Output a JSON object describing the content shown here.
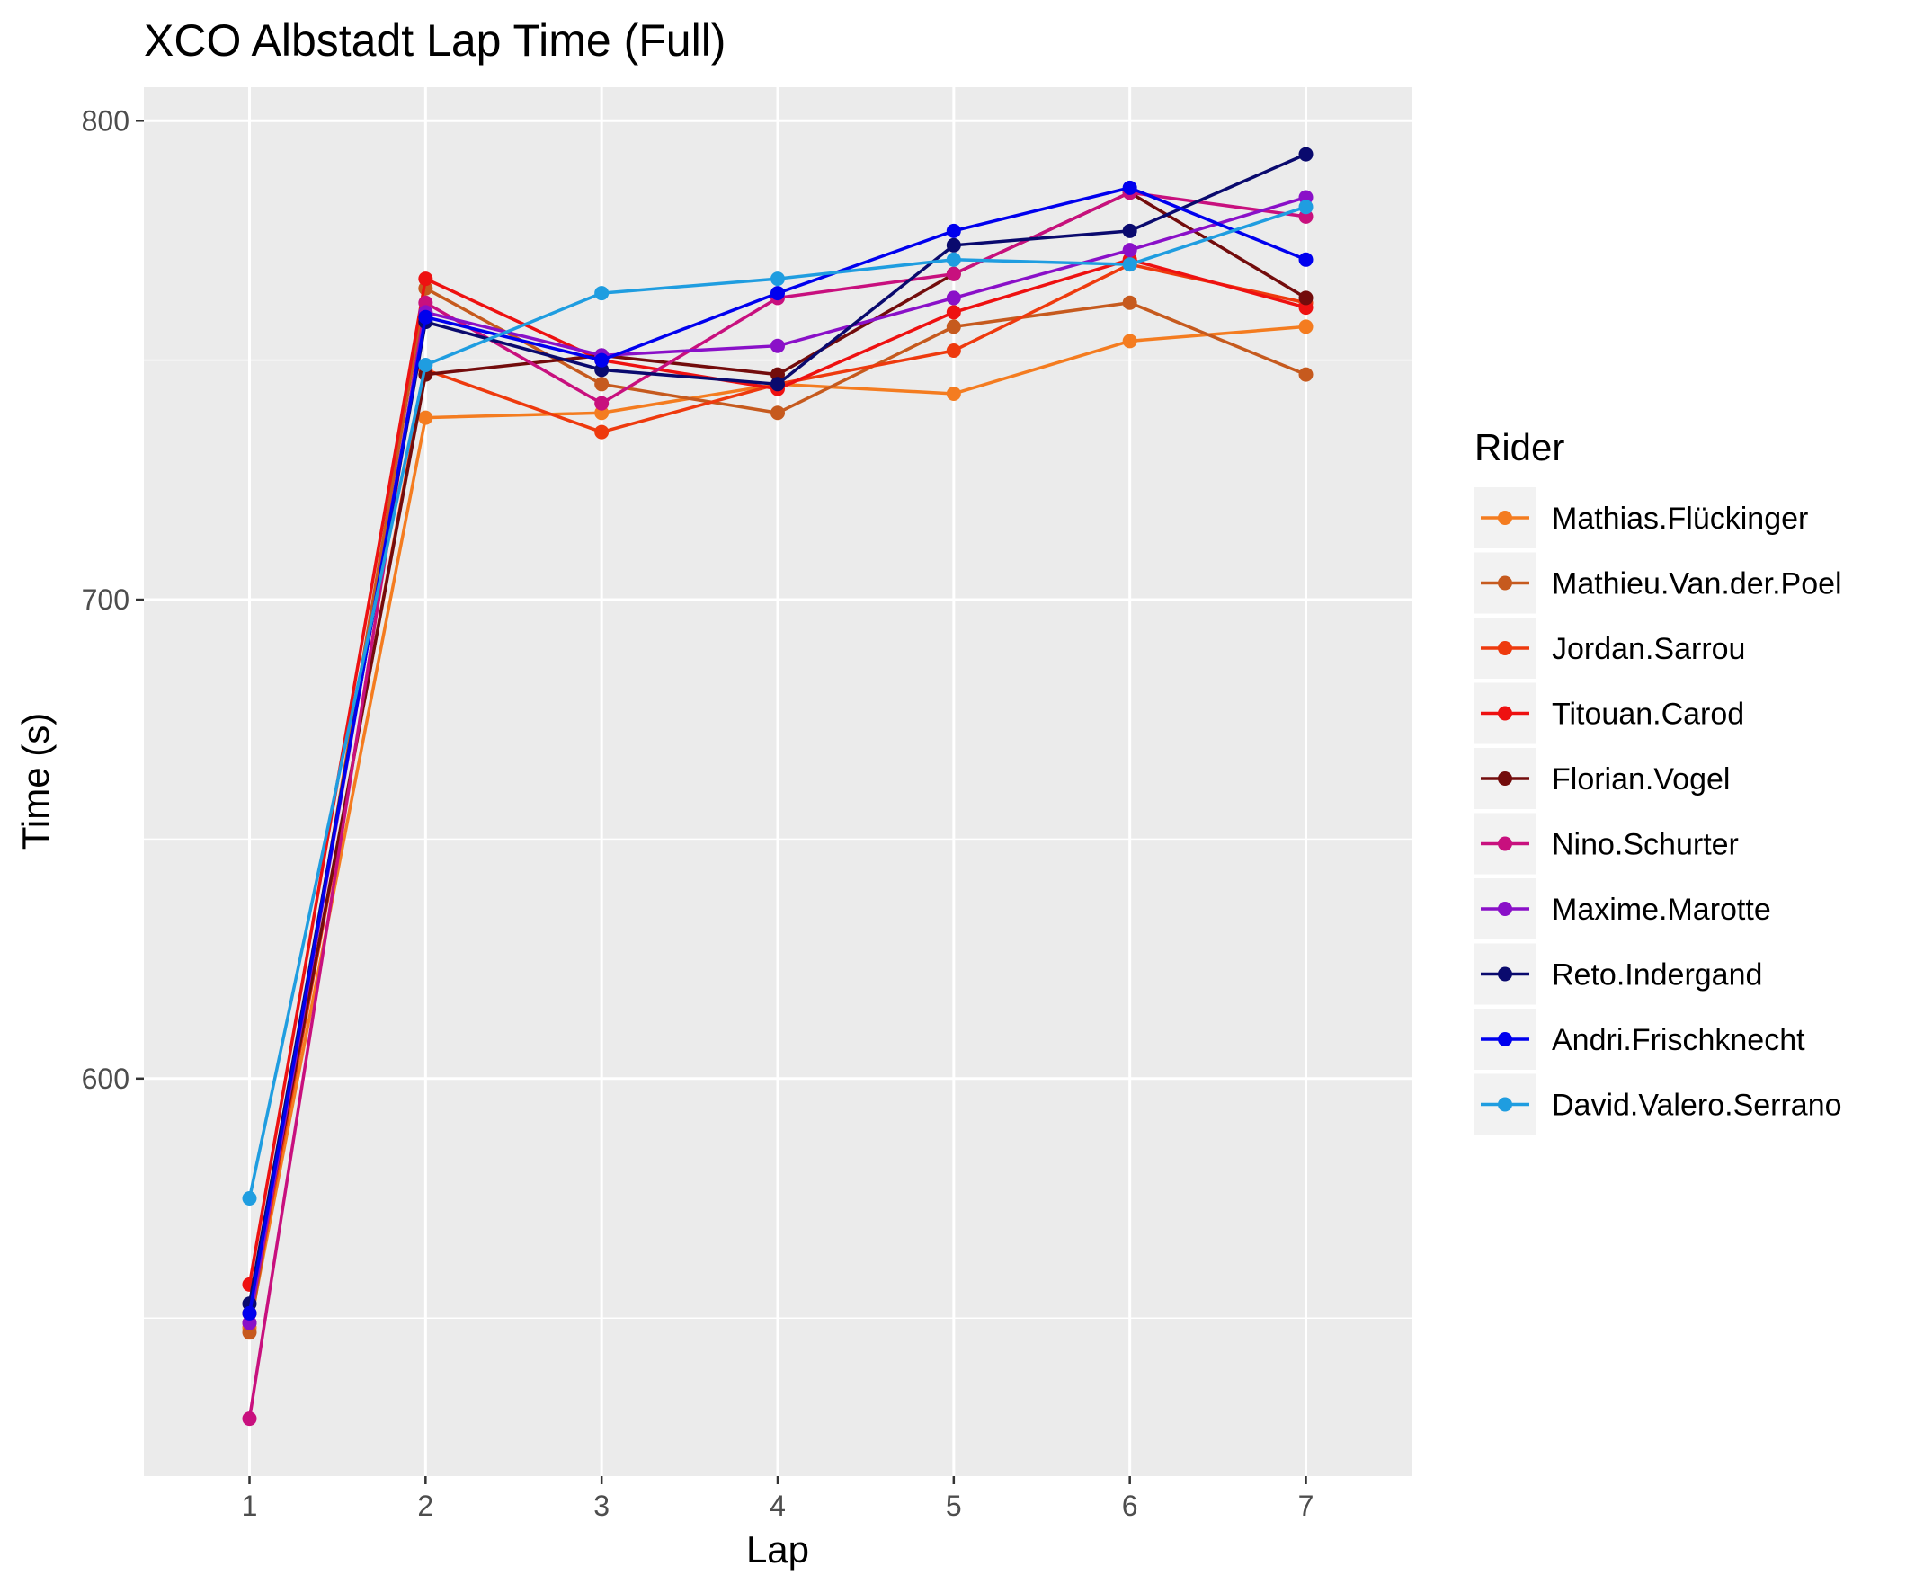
{
  "chart_data": {
    "type": "line",
    "title": "XCO Albstadt Lap Time (Full)",
    "xlabel": "Lap",
    "ylabel": "Time (s)",
    "x": [
      1,
      2,
      3,
      4,
      5,
      6,
      7
    ],
    "xlim": [
      0.4,
      7.6
    ],
    "ylim": [
      517,
      807
    ],
    "y_ticks": [
      600,
      700,
      800
    ],
    "y_minor_ticks": [
      550,
      650,
      750
    ],
    "grid": true,
    "legend": {
      "title": "Rider",
      "position": "right"
    },
    "series": [
      {
        "name": "Mathias.Flückinger",
        "color": "#f47c20",
        "values": [
          548,
          738,
          739,
          745,
          743,
          754,
          757
        ]
      },
      {
        "name": "Mathieu.Van.der.Poel",
        "color": "#c65a1e",
        "values": [
          547,
          765,
          745,
          739,
          757,
          762,
          747
        ]
      },
      {
        "name": "Jordan.Sarrou",
        "color": "#ee3a0e",
        "values": [
          549,
          748,
          735,
          745,
          752,
          770,
          762
        ]
      },
      {
        "name": "Titouan.Carod",
        "color": "#ee1111",
        "values": [
          557,
          767,
          750,
          744,
          760,
          771,
          761
        ]
      },
      {
        "name": "Florian.Vogel",
        "color": "#730c0c",
        "values": [
          551,
          747,
          751,
          747,
          768,
          785,
          763
        ]
      },
      {
        "name": "Nino.Schurter",
        "color": "#c8107e",
        "values": [
          529,
          762,
          741,
          763,
          768,
          785,
          780
        ]
      },
      {
        "name": "Maxime.Marotte",
        "color": "#8a10c8",
        "values": [
          549,
          760,
          751,
          753,
          763,
          773,
          784
        ]
      },
      {
        "name": "Reto.Indergand",
        "color": "#0a0a6e",
        "values": [
          553,
          758,
          748,
          745,
          774,
          777,
          793
        ]
      },
      {
        "name": "Andri.Frischknecht",
        "color": "#0000ee",
        "values": [
          551,
          759,
          750,
          764,
          777,
          786,
          771
        ]
      },
      {
        "name": "David.Valero.Serrano",
        "color": "#1f9de0",
        "values": [
          575,
          749,
          764,
          767,
          771,
          770,
          782
        ]
      }
    ]
  }
}
